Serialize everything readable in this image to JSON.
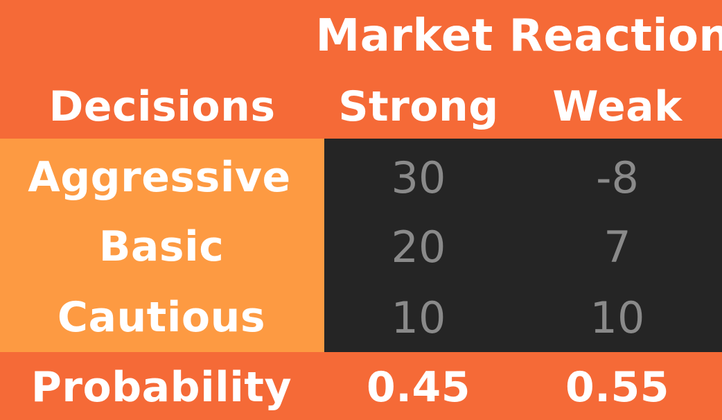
{
  "chart_data": {
    "type": "table",
    "header_group": "Market Reaction",
    "corner_label": "Decisions",
    "columns": [
      "Strong",
      "Weak"
    ],
    "rows": [
      {
        "label": "Aggressive",
        "values": [
          "30",
          "-8"
        ]
      },
      {
        "label": "Basic",
        "values": [
          "20",
          "7"
        ]
      },
      {
        "label": "Cautious",
        "values": [
          "10",
          "10"
        ]
      }
    ],
    "footer": {
      "label": "Probability",
      "values": [
        "0.45",
        "0.55"
      ]
    }
  },
  "colors": {
    "header_background": "#f56a37",
    "row_label_background": "#fd9a42",
    "values_background": "#252525",
    "header_text": "#ffffff",
    "value_text": "#8a8a8a"
  }
}
